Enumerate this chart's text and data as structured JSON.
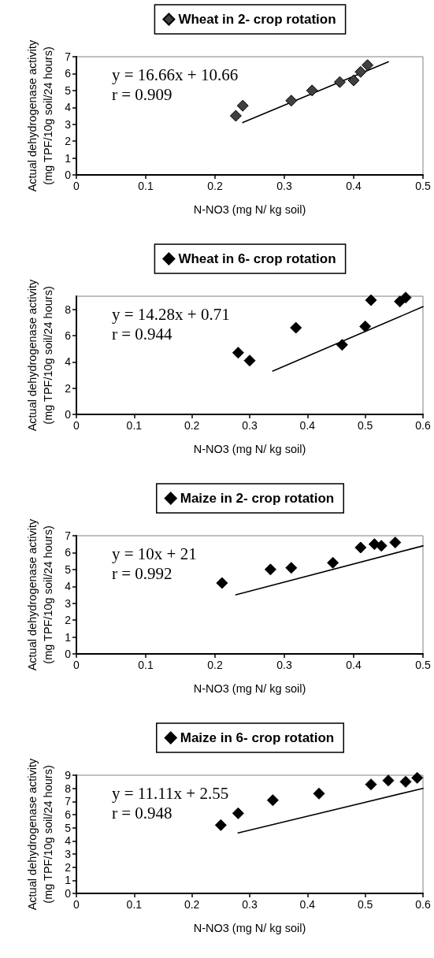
{
  "chart_data": [
    {
      "type": "scatter",
      "xlabel": "N-NO3 (mg N/ kg soil)",
      "ylabel": "Actual dehydrogenase activity (mg TPF/10g soil/24 hours)",
      "xlim": [
        0,
        0.5
      ],
      "xticks": [
        0,
        0.1,
        0.2,
        0.3,
        0.4,
        0.5
      ],
      "ylim": [
        0,
        7
      ],
      "yticks": [
        0,
        1,
        2,
        3,
        4,
        5,
        6,
        7
      ],
      "grid": false,
      "legend": "top",
      "marker": "diamond",
      "annotations": [
        "y = 16.66x + 10.66",
        "r = 0.909"
      ],
      "series": [
        {
          "name": "Wheat in 2- crop rotation",
          "color": "#404040",
          "x": [
            0.23,
            0.24,
            0.31,
            0.34,
            0.38,
            0.4,
            0.41,
            0.42
          ],
          "values": [
            3.5,
            4.1,
            4.4,
            5.0,
            5.5,
            5.6,
            6.1,
            6.5
          ]
        },
        {
          "type": "line",
          "color": "#000000",
          "marker": "none",
          "x": [
            0.24,
            0.45
          ],
          "values": [
            3.1,
            6.7
          ]
        }
      ]
    },
    {
      "type": "scatter",
      "xlabel": "N-NO3 (mg N/ kg soil)",
      "ylabel": "Actual dehydrogenase activity (mg TPF/10g soil/24 hours)",
      "xlim": [
        0,
        0.6
      ],
      "xticks": [
        0,
        0.1,
        0.2,
        0.3,
        0.4,
        0.5,
        0.6
      ],
      "ylim": [
        0,
        9
      ],
      "yticks": [
        0,
        2,
        4,
        6,
        8
      ],
      "grid": false,
      "legend": "top",
      "marker": "diamond",
      "annotations": [
        "y = 14.28x + 0.71",
        "r = 0.944"
      ],
      "series": [
        {
          "name": "Wheat in 6- crop rotation",
          "color": "#000000",
          "x": [
            0.28,
            0.3,
            0.38,
            0.46,
            0.5,
            0.51,
            0.56,
            0.57
          ],
          "values": [
            4.7,
            4.1,
            6.6,
            5.3,
            6.7,
            8.7,
            8.6,
            8.9
          ]
        },
        {
          "type": "line",
          "color": "#000000",
          "marker": "none",
          "x": [
            0.34,
            0.6
          ],
          "values": [
            3.3,
            8.2
          ]
        }
      ]
    },
    {
      "type": "scatter",
      "xlabel": "N-NO3 (mg N/ kg soil)",
      "ylabel": "Actual dehydrogenase activity (mg TPF/10g soil/24 hours)",
      "xlim": [
        0,
        0.5
      ],
      "xticks": [
        0,
        0.1,
        0.2,
        0.3,
        0.4,
        0.5
      ],
      "ylim": [
        0,
        7
      ],
      "yticks": [
        0,
        1,
        2,
        3,
        4,
        5,
        6,
        7
      ],
      "grid": false,
      "legend": "top",
      "marker": "diamond",
      "annotations": [
        "y = 10x + 21",
        "r = 0.992"
      ],
      "series": [
        {
          "name": "Maize in 2- crop rotation",
          "color": "#000000",
          "x": [
            0.21,
            0.28,
            0.31,
            0.37,
            0.41,
            0.43,
            0.44,
            0.46
          ],
          "values": [
            4.2,
            5.0,
            5.1,
            5.4,
            6.3,
            6.5,
            6.4,
            6.6
          ]
        },
        {
          "type": "line",
          "color": "#000000",
          "marker": "none",
          "x": [
            0.23,
            0.5
          ],
          "values": [
            3.5,
            6.4
          ]
        }
      ]
    },
    {
      "type": "scatter",
      "xlabel": "N-NO3 (mg N/ kg soil)",
      "ylabel": "Actual dehydrogenase activity (mg TPF/10g soil/24 hours)",
      "xlim": [
        0,
        0.6
      ],
      "xticks": [
        0,
        0.1,
        0.2,
        0.3,
        0.4,
        0.5,
        0.6
      ],
      "ylim": [
        0,
        9
      ],
      "yticks": [
        0,
        1,
        2,
        3,
        4,
        5,
        6,
        7,
        8,
        9
      ],
      "grid": false,
      "legend": "top",
      "marker": "diamond",
      "annotations": [
        "y = 11.11x + 2.55",
        "r = 0.948"
      ],
      "series": [
        {
          "name": "Maize in 6- crop rotation",
          "color": "#000000",
          "x": [
            0.25,
            0.28,
            0.34,
            0.42,
            0.51,
            0.54,
            0.57,
            0.59
          ],
          "values": [
            5.2,
            6.1,
            7.1,
            7.6,
            8.3,
            8.6,
            8.5,
            8.8
          ]
        },
        {
          "type": "line",
          "color": "#000000",
          "marker": "none",
          "x": [
            0.28,
            0.6
          ],
          "values": [
            4.6,
            8.0
          ]
        }
      ]
    }
  ]
}
